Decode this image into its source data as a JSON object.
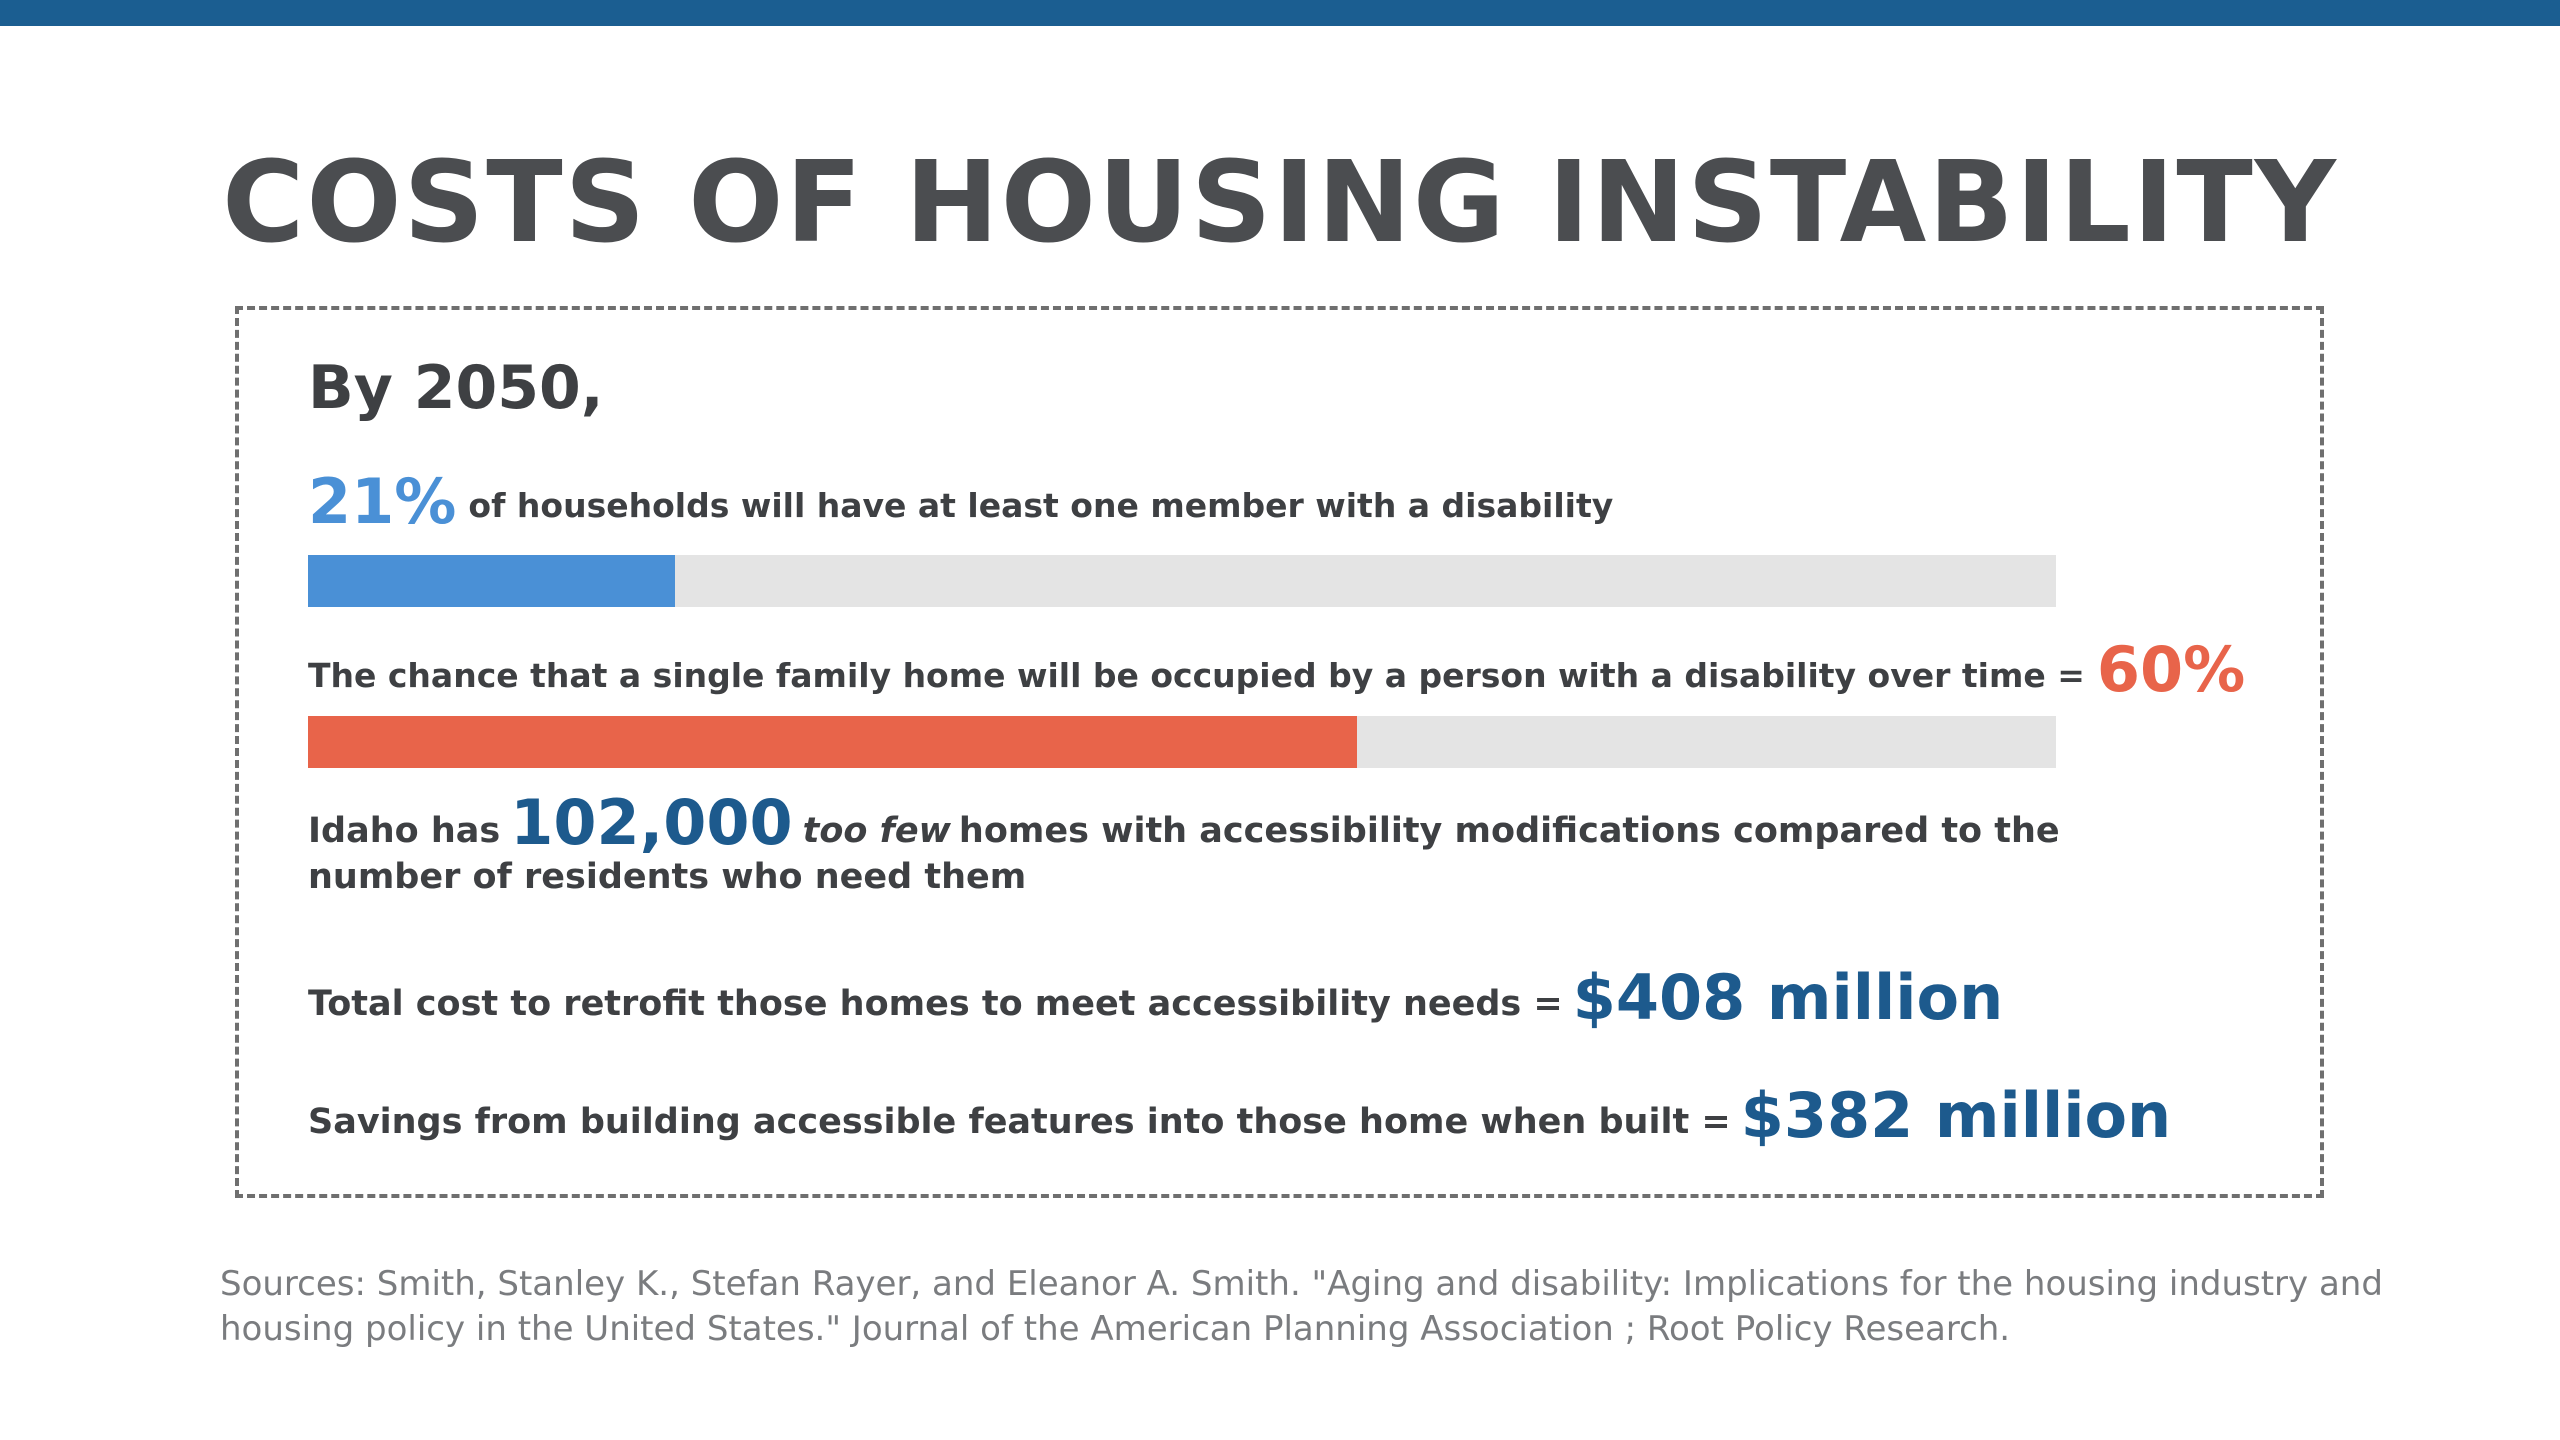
{
  "header": {
    "bar_color": "#1b5e91",
    "title": "COSTS OF HOUSING INSTABILITY"
  },
  "card": {
    "intro": "By 2050,",
    "stat1": {
      "value": "21%",
      "text": "of households will have at least one member with a disability",
      "bar_percent": 21,
      "bar_color": "#4a90d6"
    },
    "stat2": {
      "text": "The chance that a single family home will be occupied by a person with a disability over time =",
      "value": "60%",
      "bar_percent": 60,
      "bar_color": "#e8644a"
    },
    "stat3": {
      "prefix": "Idaho has",
      "value": "102,000",
      "emphasis": "too few",
      "text": "homes with accessibility modifications compared to the number of residents who need them"
    },
    "stat4": {
      "text": "Total cost to retrofit those homes to meet accessibility needs =",
      "value": "$408 million"
    },
    "stat5": {
      "text": "Savings from building accessible features into those home when built =",
      "value": "$382 million"
    }
  },
  "sources": "Sources: Smith, Stanley K., Stefan Rayer, and Eleanor A. Smith. \"Aging and disability: Implications for the housing industry and housing policy in the United States.\" Journal of the American Planning Association ; Root Policy Research."
}
